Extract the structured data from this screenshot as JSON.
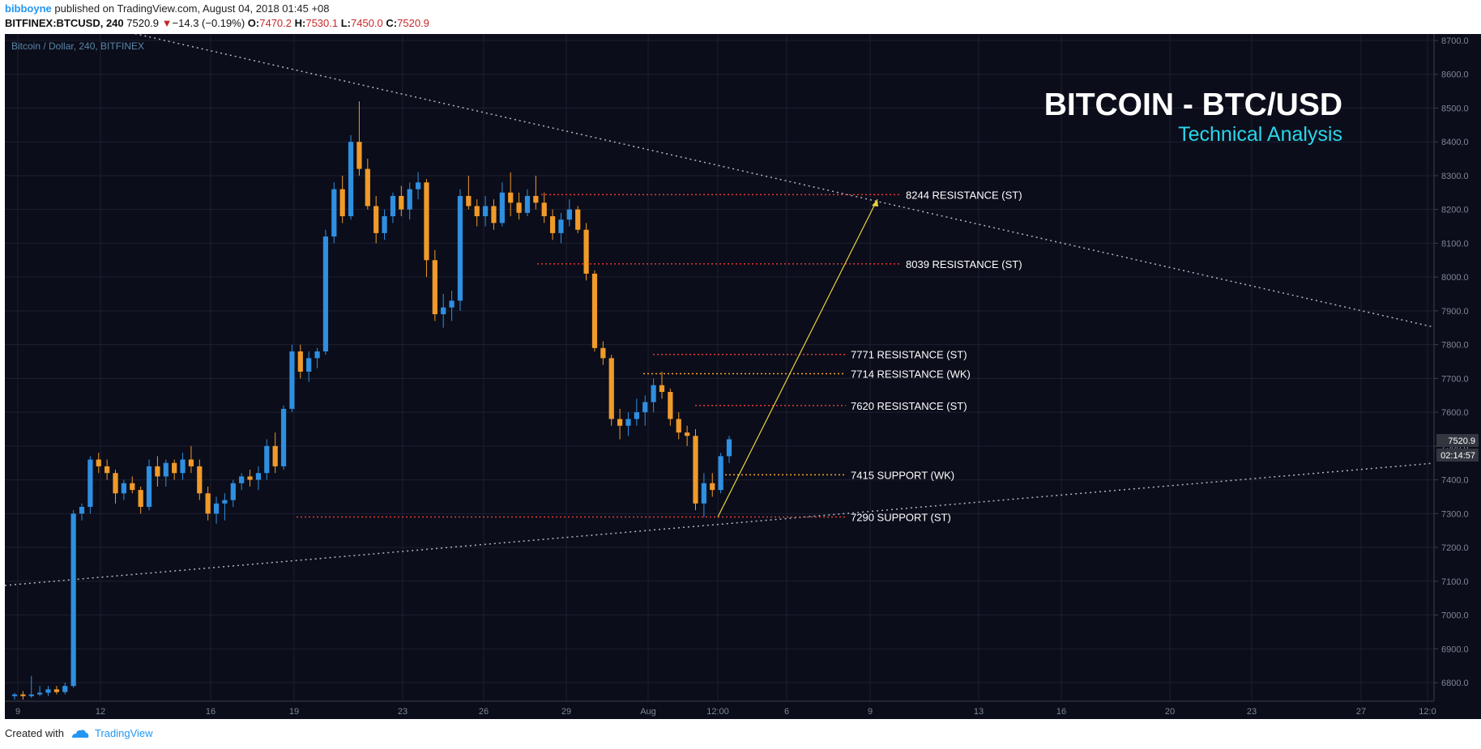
{
  "header": {
    "author": "bibboyne",
    "published_text": "published on TradingView.com, August 04, 2018 01:45 +08",
    "symbol": "BITFINEX:BTCUSD, 240",
    "last": "7520.9",
    "change_arrow": "▼",
    "change": "−14.3 (−0.19%)",
    "o_label": "O:",
    "o": "7470.2",
    "h_label": "H:",
    "h": "7530.1",
    "l_label": "L:",
    "l": "7450.0",
    "c_label": "C:",
    "c": "7520.9"
  },
  "footer": {
    "created_with": "Created with",
    "brand": "TradingView"
  },
  "colors": {
    "background": "#0b0d1a",
    "up": "#2f8fe0",
    "down": "#f09a2a",
    "resistance": "#e53935",
    "weekly": "#f5a623",
    "trend": "#b0b6c4",
    "arrow": "#e6d23a",
    "title": "#ffffff",
    "subtitle": "#29d6ea"
  },
  "chart_data": {
    "type": "candlestick",
    "pane_label": "Bitcoin / Dollar, 240, BITFINEX",
    "title": "BITCOIN - BTC/USD",
    "subtitle": "Technical Analysis",
    "ylim": [
      6750,
      8750
    ],
    "y_ticks": [
      "8700.0",
      "8600.0",
      "8500.0",
      "8400.0",
      "8300.0",
      "8200.0",
      "8100.0",
      "8000.0",
      "7900.0",
      "7800.0",
      "7700.0",
      "7600.0",
      "7500.0",
      "7400.0",
      "7300.0",
      "7200.0",
      "7100.0",
      "7000.0",
      "6900.0",
      "6800.0"
    ],
    "x_ticks": [
      "9",
      "12",
      "16",
      "19",
      "23",
      "26",
      "29",
      "Aug",
      "12:00",
      "6",
      "9",
      "13",
      "16",
      "20",
      "23",
      "27",
      "12:0"
    ],
    "last_price_label": "7520.9",
    "countdown_label": "02:14:57",
    "levels": [
      {
        "value": 8244,
        "label": "8244 RESISTANCE (ST)",
        "kind": "ST"
      },
      {
        "value": 8039,
        "label": "8039 RESISTANCE (ST)",
        "kind": "ST"
      },
      {
        "value": 7771,
        "label": "7771 RESISTANCE (ST)",
        "kind": "ST"
      },
      {
        "value": 7714,
        "label": "7714 RESISTANCE (WK)",
        "kind": "WK"
      },
      {
        "value": 7620,
        "label": "7620 RESISTANCE (ST)",
        "kind": "ST"
      },
      {
        "value": 7415,
        "label": "7415 SUPPORT (WK)",
        "kind": "WK"
      },
      {
        "value": 7290,
        "label": "7290 SUPPORT (ST)",
        "kind": "ST"
      }
    ],
    "ohlc": [
      [
        6760,
        6770,
        6750,
        6765
      ],
      [
        6765,
        6775,
        6750,
        6760
      ],
      [
        6760,
        6820,
        6755,
        6765
      ],
      [
        6765,
        6790,
        6760,
        6770
      ],
      [
        6770,
        6790,
        6760,
        6780
      ],
      [
        6780,
        6790,
        6765,
        6772
      ],
      [
        6772,
        6800,
        6765,
        6790
      ],
      [
        6790,
        7310,
        6785,
        7300
      ],
      [
        7300,
        7330,
        7280,
        7320
      ],
      [
        7320,
        7470,
        7300,
        7460
      ],
      [
        7460,
        7480,
        7420,
        7440
      ],
      [
        7440,
        7460,
        7400,
        7420
      ],
      [
        7420,
        7430,
        7330,
        7360
      ],
      [
        7360,
        7400,
        7340,
        7390
      ],
      [
        7390,
        7410,
        7360,
        7370
      ],
      [
        7370,
        7380,
        7300,
        7320
      ],
      [
        7320,
        7460,
        7310,
        7440
      ],
      [
        7440,
        7470,
        7380,
        7410
      ],
      [
        7410,
        7460,
        7380,
        7450
      ],
      [
        7450,
        7460,
        7400,
        7420
      ],
      [
        7420,
        7480,
        7400,
        7460
      ],
      [
        7460,
        7500,
        7420,
        7440
      ],
      [
        7440,
        7460,
        7340,
        7360
      ],
      [
        7360,
        7380,
        7280,
        7300
      ],
      [
        7300,
        7350,
        7270,
        7330
      ],
      [
        7330,
        7360,
        7280,
        7340
      ],
      [
        7340,
        7400,
        7320,
        7390
      ],
      [
        7390,
        7420,
        7370,
        7410
      ],
      [
        7410,
        7430,
        7380,
        7400
      ],
      [
        7400,
        7440,
        7370,
        7420
      ],
      [
        7420,
        7520,
        7400,
        7500
      ],
      [
        7500,
        7540,
        7420,
        7440
      ],
      [
        7440,
        7620,
        7430,
        7610
      ],
      [
        7610,
        7800,
        7600,
        7780
      ],
      [
        7780,
        7800,
        7700,
        7720
      ],
      [
        7720,
        7780,
        7690,
        7760
      ],
      [
        7760,
        7790,
        7730,
        7780
      ],
      [
        7780,
        8140,
        7770,
        8120
      ],
      [
        8120,
        8280,
        8100,
        8260
      ],
      [
        8260,
        8300,
        8160,
        8180
      ],
      [
        8180,
        8420,
        8170,
        8400
      ],
      [
        8400,
        8520,
        8300,
        8320
      ],
      [
        8320,
        8350,
        8200,
        8210
      ],
      [
        8210,
        8240,
        8100,
        8130
      ],
      [
        8130,
        8200,
        8110,
        8180
      ],
      [
        8180,
        8250,
        8160,
        8240
      ],
      [
        8240,
        8270,
        8180,
        8200
      ],
      [
        8200,
        8280,
        8170,
        8260
      ],
      [
        8260,
        8310,
        8230,
        8280
      ],
      [
        8280,
        8290,
        8000,
        8050
      ],
      [
        8050,
        8080,
        7870,
        7890
      ],
      [
        7890,
        7950,
        7850,
        7910
      ],
      [
        7910,
        7960,
        7870,
        7930
      ],
      [
        7930,
        8260,
        7900,
        8240
      ],
      [
        8240,
        8300,
        8200,
        8210
      ],
      [
        8210,
        8230,
        8150,
        8180
      ],
      [
        8180,
        8240,
        8150,
        8210
      ],
      [
        8210,
        8230,
        8140,
        8160
      ],
      [
        8160,
        8280,
        8150,
        8250
      ],
      [
        8250,
        8310,
        8180,
        8220
      ],
      [
        8220,
        8250,
        8170,
        8190
      ],
      [
        8190,
        8260,
        8180,
        8240
      ],
      [
        8240,
        8300,
        8200,
        8220
      ],
      [
        8220,
        8250,
        8160,
        8180
      ],
      [
        8180,
        8200,
        8110,
        8130
      ],
      [
        8130,
        8190,
        8100,
        8170
      ],
      [
        8170,
        8230,
        8150,
        8200
      ],
      [
        8200,
        8210,
        8130,
        8140
      ],
      [
        8140,
        8160,
        7990,
        8010
      ],
      [
        8010,
        8020,
        7780,
        7790
      ],
      [
        7790,
        7810,
        7740,
        7760
      ],
      [
        7760,
        7770,
        7560,
        7580
      ],
      [
        7580,
        7610,
        7520,
        7560
      ],
      [
        7560,
        7600,
        7530,
        7580
      ],
      [
        7580,
        7640,
        7560,
        7600
      ],
      [
        7600,
        7650,
        7560,
        7630
      ],
      [
        7630,
        7700,
        7600,
        7680
      ],
      [
        7680,
        7720,
        7640,
        7660
      ],
      [
        7660,
        7670,
        7560,
        7580
      ],
      [
        7580,
        7600,
        7520,
        7540
      ],
      [
        7540,
        7560,
        7500,
        7530
      ],
      [
        7530,
        7550,
        7310,
        7330
      ],
      [
        7330,
        7420,
        7290,
        7390
      ],
      [
        7390,
        7420,
        7350,
        7370
      ],
      [
        7370,
        7480,
        7360,
        7470
      ],
      [
        7470,
        7530,
        7450,
        7520
      ]
    ]
  }
}
